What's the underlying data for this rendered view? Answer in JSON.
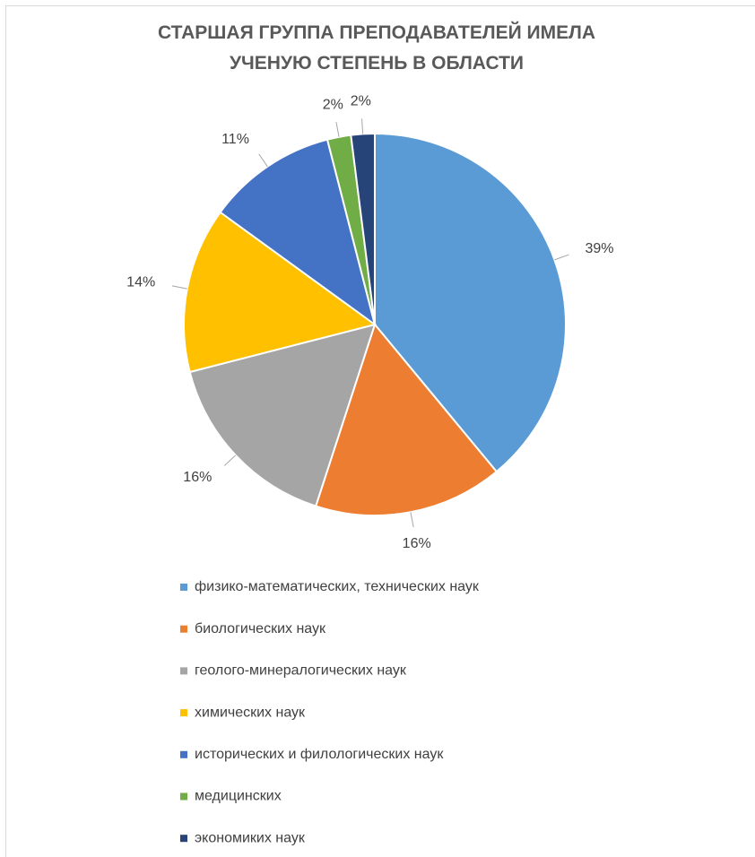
{
  "chart_data": {
    "type": "pie",
    "title": "СТАРШАЯ ГРУППА ПРЕПОДАВАТЕЛЕЙ ИМЕЛА УЧЕНУЮ СТЕПЕНЬ В ОБЛАСТИ",
    "categories": [
      "физико-математических, технических наук",
      "биологических наук",
      "геолого-минералогических наук",
      "химических наук",
      "исторических и филологических наук",
      "медицинских",
      "экономиких наук"
    ],
    "values": [
      39,
      16,
      16,
      14,
      11,
      2,
      2
    ],
    "value_labels": [
      "39%",
      "16%",
      "16%",
      "14%",
      "11%",
      "2%",
      "2%"
    ],
    "colors": [
      "#5b9bd5",
      "#ed7d31",
      "#a5a5a5",
      "#ffc000",
      "#4472c4",
      "#70ad47",
      "#264478"
    ],
    "legend": "bottom"
  }
}
